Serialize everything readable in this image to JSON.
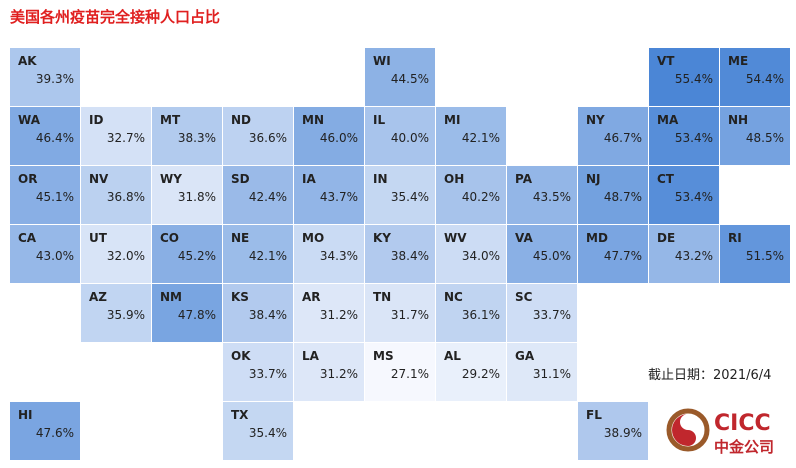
{
  "chart_data": {
    "type": "tilemap",
    "title": "美国各州疫苗完全接种人口占比",
    "categories": [
      "AK",
      "WI",
      "VT",
      "ME",
      "WA",
      "ID",
      "MT",
      "ND",
      "MN",
      "IL",
      "MI",
      "NY",
      "MA",
      "NH",
      "OR",
      "NV",
      "WY",
      "SD",
      "IA",
      "IN",
      "OH",
      "PA",
      "NJ",
      "CT",
      "CA",
      "UT",
      "CO",
      "NE",
      "MO",
      "KY",
      "WV",
      "VA",
      "MD",
      "DE",
      "RI",
      "AZ",
      "NM",
      "KS",
      "AR",
      "TN",
      "NC",
      "SC",
      "OK",
      "LA",
      "MS",
      "AL",
      "GA",
      "HI",
      "TX",
      "FL"
    ],
    "values": [
      39.3,
      44.5,
      55.4,
      54.4,
      46.4,
      32.7,
      38.3,
      36.6,
      46.0,
      40.0,
      42.1,
      46.7,
      53.4,
      48.5,
      45.1,
      36.8,
      31.8,
      42.4,
      43.7,
      35.4,
      40.2,
      43.5,
      48.7,
      53.4,
      43.0,
      32.0,
      45.2,
      42.1,
      34.3,
      38.4,
      34.0,
      45.0,
      47.7,
      43.2,
      51.5,
      35.9,
      47.8,
      38.4,
      31.2,
      31.7,
      36.1,
      33.7,
      33.7,
      31.2,
      27.1,
      29.2,
      31.1,
      47.6,
      35.4,
      38.9
    ],
    "value_labels": [
      "39.3%",
      "44.5%",
      "55.4%",
      "54.4%",
      "46.4%",
      "32.7%",
      "38.3%",
      "36.6%",
      "46.0%",
      "40.0%",
      "42.1%",
      "46.7%",
      "53.4%",
      "48.5%",
      "45.1%",
      "36.8%",
      "31.8%",
      "42.4%",
      "43.7%",
      "35.4%",
      "40.2%",
      "43.5%",
      "48.7%",
      "53.4%",
      "43.0%",
      "32.0%",
      "45.2%",
      "42.1%",
      "34.3%",
      "38.4%",
      "34.0%",
      "45.0%",
      "47.7%",
      "43.2%",
      "51.5%",
      "35.9%",
      "47.8%",
      "38.4%",
      "31.2%",
      "31.7%",
      "36.1%",
      "33.7%",
      "33.7%",
      "31.2%",
      "27.1%",
      "29.2%",
      "31.1%",
      "47.6%",
      "35.4%",
      "38.9%"
    ],
    "color_range": [
      "#f6f8fe",
      "#4b86d6"
    ],
    "note": "截止日期：2021/6/4"
  },
  "logo": {
    "name": "CICC",
    "subname": "中金公司"
  }
}
